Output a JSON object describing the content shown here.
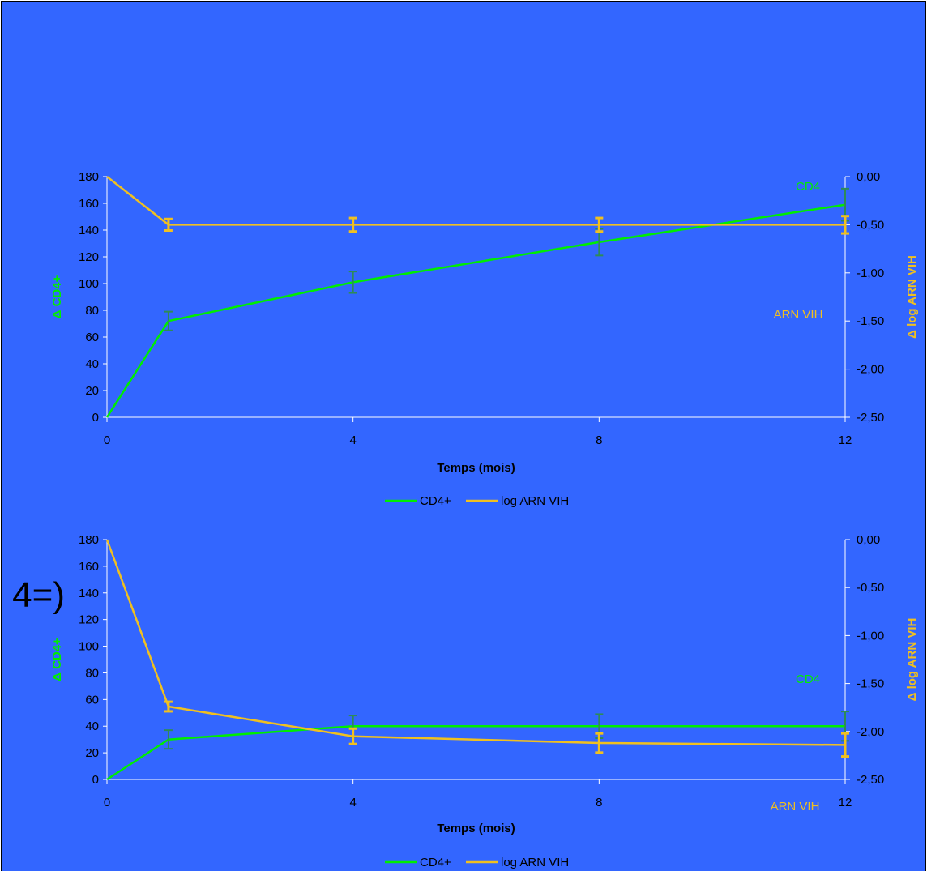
{
  "page": {
    "background": "#3366ff",
    "border": "#000000",
    "fragment_text": "4=)"
  },
  "colors": {
    "cd4": "#00ee00",
    "arn": "#f0c020",
    "cd4_error": "#2e8b57",
    "axis": "#ffffff"
  },
  "chart_data": [
    {
      "type": "line",
      "xlabel": "Temps (mois)",
      "ylabel_left": "Δ CD4+",
      "ylabel_right": "Δ log ARN VIH",
      "x_ticks": [
        "0",
        "4",
        "8",
        "12"
      ],
      "xlim": [
        0,
        12
      ],
      "ylim_left": [
        0,
        180
      ],
      "y_ticks_left": [
        "0",
        "20",
        "40",
        "60",
        "80",
        "100",
        "120",
        "140",
        "160",
        "180"
      ],
      "ylim_right": [
        -2.5,
        0
      ],
      "y_ticks_right": [
        "-2,50",
        "-2,00",
        "-1,50",
        "-1,00",
        "-0,50",
        "0,00"
      ],
      "legend": [
        "CD4+",
        "log ARN VIH"
      ],
      "legend_position": "bottom",
      "annotations": [
        "CD4",
        "ARN VIH"
      ],
      "series": [
        {
          "name": "CD4+",
          "axis": "left",
          "x": [
            0,
            1,
            4,
            8,
            12
          ],
          "y": [
            0,
            72,
            101,
            131,
            159
          ],
          "err": [
            0,
            7,
            8,
            10,
            12
          ]
        },
        {
          "name": "log ARN VIH",
          "axis": "right",
          "x": [
            0,
            1,
            4,
            8,
            12
          ],
          "y": [
            0,
            -0.5,
            -0.5,
            -0.5,
            -0.5
          ],
          "err": [
            0,
            0.06,
            0.07,
            0.07,
            0.09
          ]
        }
      ]
    },
    {
      "type": "line",
      "xlabel": "Temps (mois)",
      "ylabel_left": "Δ CD4+",
      "ylabel_right": "Δ log ARN VIH",
      "x_ticks": [
        "0",
        "4",
        "8",
        "12"
      ],
      "xlim": [
        0,
        12
      ],
      "ylim_left": [
        0,
        180
      ],
      "y_ticks_left": [
        "0",
        "20",
        "40",
        "60",
        "80",
        "100",
        "120",
        "140",
        "160",
        "180"
      ],
      "ylim_right": [
        -2.5,
        0
      ],
      "y_ticks_right": [
        "-2,50",
        "-2,00",
        "-1,50",
        "-1,00",
        "-0,50",
        "0,00"
      ],
      "legend": [
        "CD4+",
        "log ARN VIH"
      ],
      "legend_position": "bottom",
      "annotations": [
        "CD4",
        "ARN VIH"
      ],
      "series": [
        {
          "name": "CD4+",
          "axis": "left",
          "x": [
            0,
            1,
            4,
            8,
            12
          ],
          "y": [
            0,
            30,
            40,
            40,
            40
          ],
          "err": [
            0,
            7,
            8,
            9,
            11
          ]
        },
        {
          "name": "log ARN VIH",
          "axis": "right",
          "x": [
            0,
            1,
            4,
            8,
            12
          ],
          "y": [
            0,
            -1.74,
            -2.05,
            -2.12,
            -2.14
          ],
          "err": [
            0,
            0.05,
            0.08,
            0.1,
            0.12
          ]
        }
      ]
    }
  ]
}
